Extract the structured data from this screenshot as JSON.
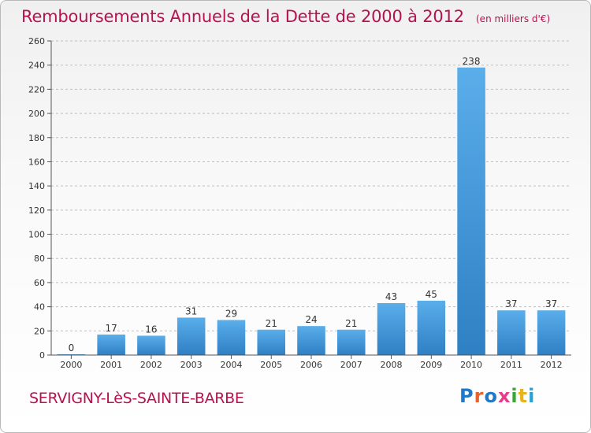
{
  "header": {
    "title": "Remboursements Annuels de la Dette de 2000 à 2012",
    "unit": "(en milliers d'€)"
  },
  "footer": {
    "commune": "SERVIGNY-LèS-SAINTE-BARBE",
    "brand": "Proxiti",
    "brand_letters": [
      "P",
      "r",
      "o",
      "x",
      "i",
      "t",
      "i"
    ],
    "brand_colors": [
      "#1f78c8",
      "#e8632b",
      "#1f78c8",
      "#e83b8b",
      "#3aa635",
      "#e8b31c",
      "#2aa1d6"
    ]
  },
  "colors": {
    "title": "#b5124f",
    "bar_light": "#5aaeea",
    "bar_dark": "#2f7fc4",
    "axis": "#555555",
    "grid": "#bfbfbf"
  },
  "chart_data": {
    "type": "bar",
    "title": "Remboursements Annuels de la Dette de 2000 à 2012",
    "subtitle": "(en milliers d'€)",
    "categories": [
      "2000",
      "2001",
      "2002",
      "2003",
      "2004",
      "2005",
      "2006",
      "2007",
      "2008",
      "2009",
      "2010",
      "2011",
      "2012"
    ],
    "values": [
      0,
      17,
      16,
      31,
      29,
      21,
      24,
      21,
      43,
      45,
      238,
      37,
      37
    ],
    "ylim": [
      0,
      260
    ],
    "yticks": [
      0,
      20,
      40,
      60,
      80,
      100,
      120,
      140,
      160,
      180,
      200,
      220,
      240,
      260
    ],
    "xlabel": "",
    "ylabel": "",
    "grid": true,
    "data_labels": true
  }
}
